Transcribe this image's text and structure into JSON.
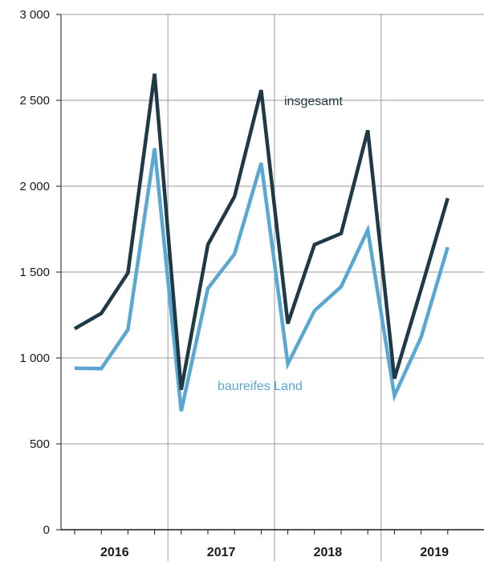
{
  "chart_data": {
    "type": "line",
    "x": [
      "2016 Q1",
      "2016 Q2",
      "2016 Q3",
      "2016 Q4",
      "2017 Q1",
      "2017 Q2",
      "2017 Q3",
      "2017 Q4",
      "2018 Q1",
      "2018 Q2",
      "2018 Q3",
      "2018 Q4",
      "2019 Q1",
      "2019 Q2",
      "2019 Q3"
    ],
    "categories_years": [
      "2016",
      "2017",
      "2018",
      "2019"
    ],
    "ylim": [
      0,
      3000
    ],
    "yticks": [
      0,
      500,
      1000,
      1500,
      2000,
      2500,
      3000
    ],
    "ytick_labels": [
      "0",
      "500",
      "1 000",
      "1 500",
      "2 000",
      "2 500",
      "3 000"
    ],
    "grid": true,
    "series": [
      {
        "name": "insgesamt",
        "color": "#1f3a45",
        "values": [
          1170,
          1260,
          1495,
          2655,
          815,
          1660,
          1940,
          2560,
          1200,
          1660,
          1725,
          2325,
          880,
          1400,
          1930
        ]
      },
      {
        "name": "baureifes Land",
        "color": "#5aa8d2",
        "values": [
          940,
          938,
          1165,
          2220,
          690,
          1405,
          1605,
          2135,
          965,
          1275,
          1415,
          1745,
          780,
          1120,
          1645
        ]
      }
    ]
  }
}
